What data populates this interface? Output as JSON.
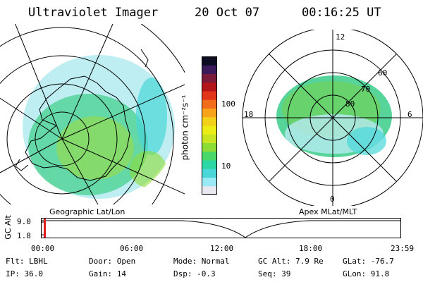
{
  "header": {
    "instrument": "Ultraviolet Imager",
    "date": "20 Oct 07",
    "time": "00:16:25 UT"
  },
  "colorbar": {
    "unit_label": "photon cm⁻²s⁻¹",
    "ticks": [
      "100",
      "10"
    ],
    "colors": [
      "#e8e8ee",
      "#9be9f5",
      "#49d7d8",
      "#2bd7a3",
      "#4bd86b",
      "#8ddc35",
      "#c9e421",
      "#ecec17",
      "#f3d019",
      "#f7a31b",
      "#f26d1b",
      "#e23418",
      "#b3161a",
      "#7a1b3c",
      "#3b1a5c",
      "#0b0b22"
    ]
  },
  "left_map": {
    "label": "Geographic Lat/Lon",
    "cloud_color": "#b7ebf1",
    "inner_color": "#56d49a",
    "core_color": "#9fdd3b"
  },
  "right_map": {
    "label": "Apex MLat/MLT",
    "clock_labels": {
      "top": "12",
      "left": "18",
      "right": "6",
      "bottom": "0"
    },
    "lat_labels": [
      "60",
      "70",
      "80"
    ]
  },
  "timeline": {
    "axis_label": "GC Alt",
    "y_ticks": [
      "9.0",
      "1.8"
    ],
    "x_ticks": [
      "00:00",
      "06:00",
      "12:00",
      "18:00",
      "23:59"
    ],
    "marker_color": "#e02020",
    "line_color": "#000000"
  },
  "info": {
    "row1": [
      {
        "key": "Flt:",
        "value": "LBHL"
      },
      {
        "key": "Door:",
        "value": "Open"
      },
      {
        "key": "Mode:",
        "value": "Normal"
      },
      {
        "key": "GC Alt:",
        "value": "7.9 Re"
      },
      {
        "key": "GLat:",
        "value": "-76.7"
      }
    ],
    "row2": [
      {
        "key": "IP:",
        "value": "36.0"
      },
      {
        "key": "Gain:",
        "value": "14"
      },
      {
        "key": "Dsp:",
        "value": "-0.3"
      },
      {
        "key": "Seq:",
        "value": "39"
      },
      {
        "key": "GLon:",
        "value": "91.8"
      }
    ]
  }
}
